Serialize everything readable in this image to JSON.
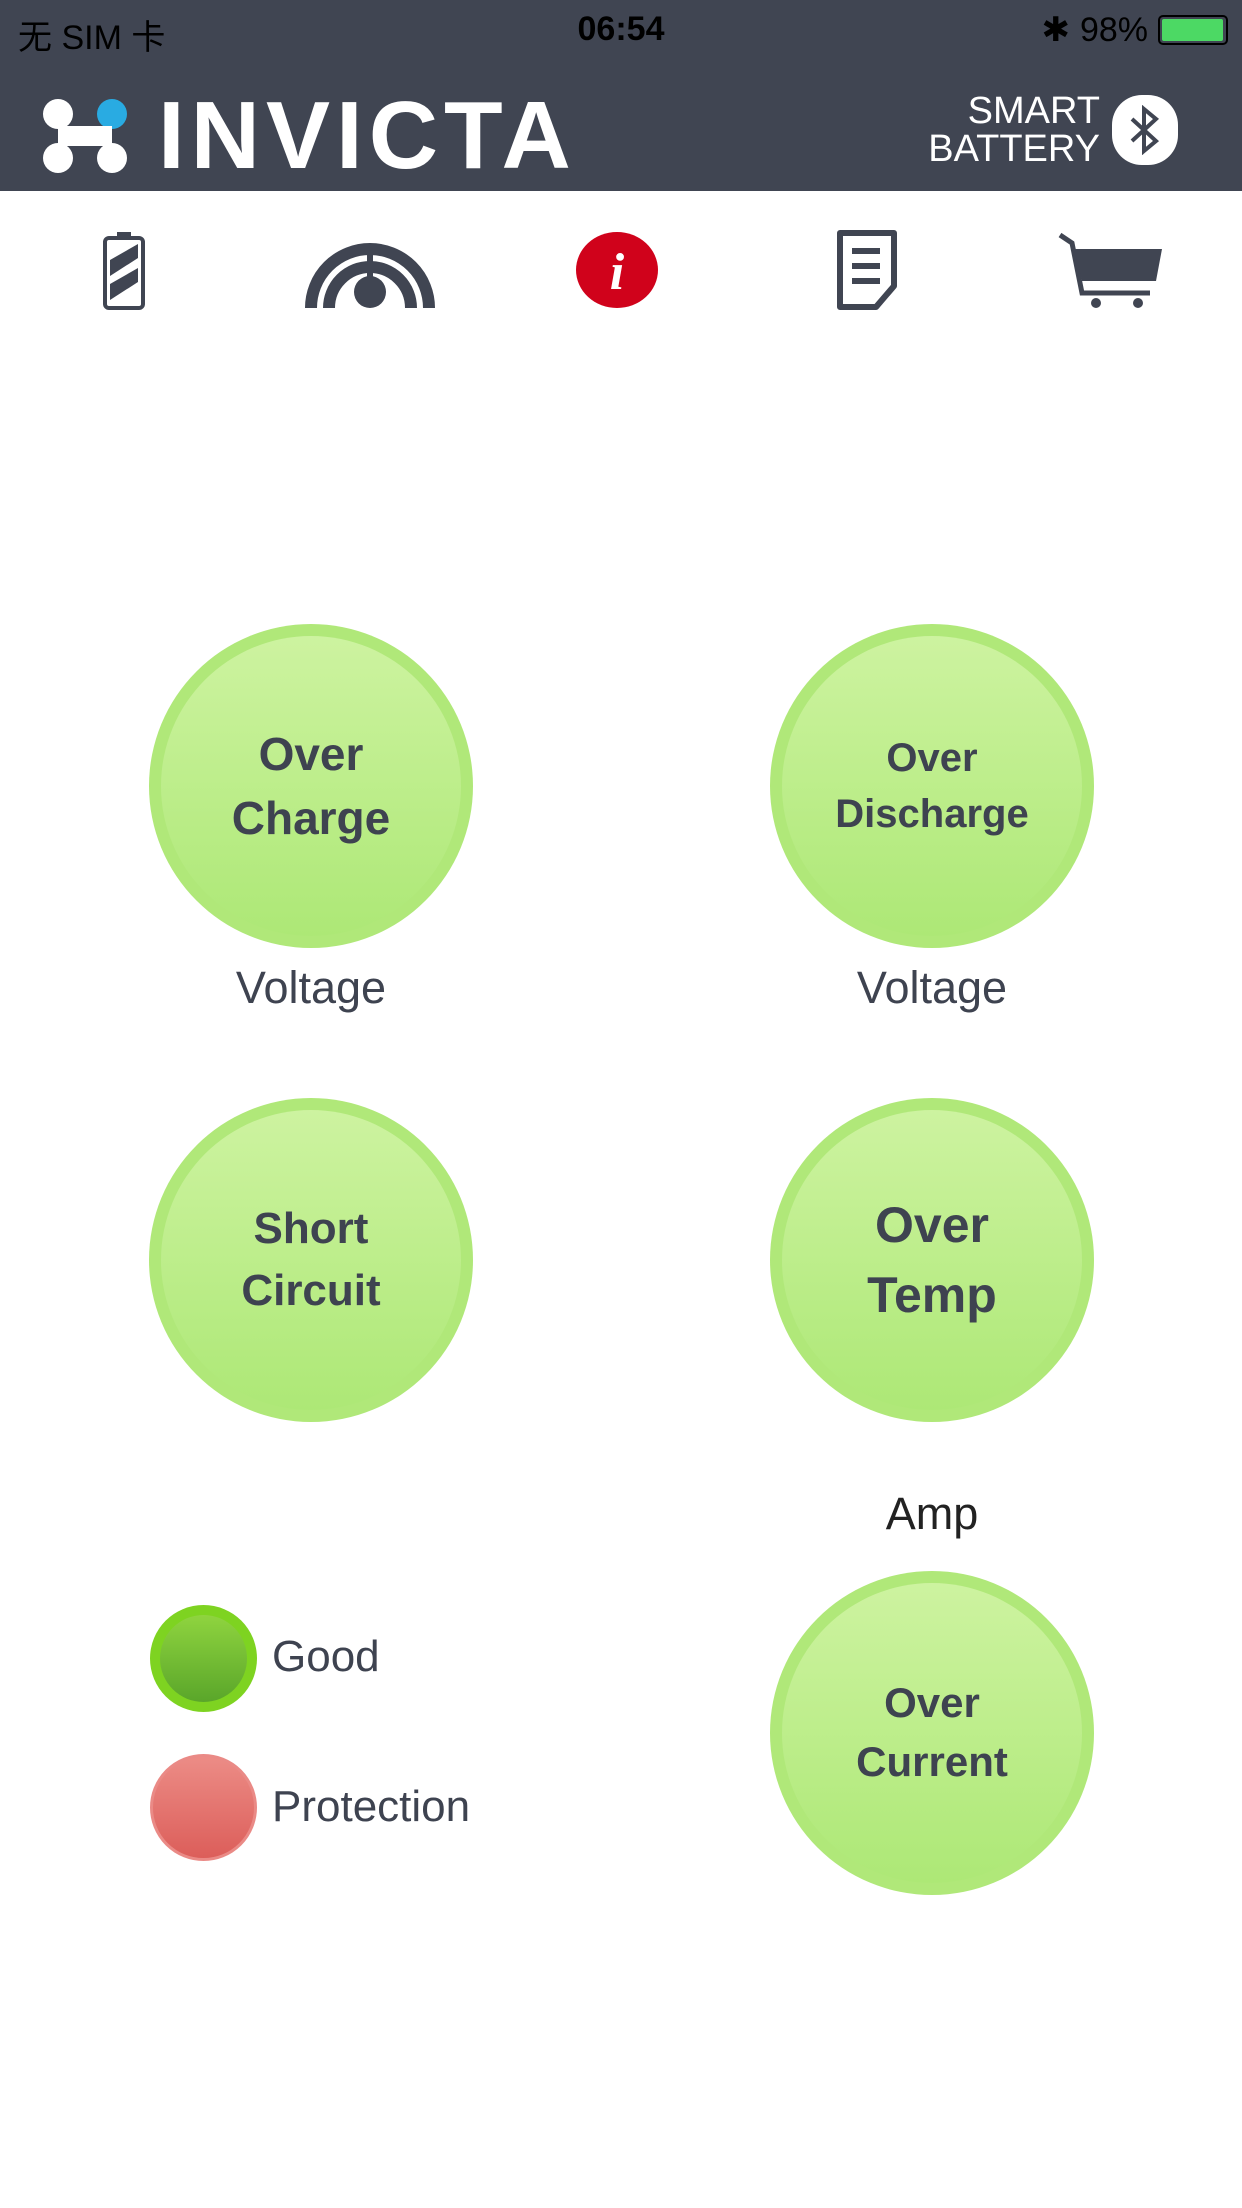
{
  "status_bar": {
    "carrier": "无 SIM 卡",
    "time": "06:54",
    "battery": "98%",
    "battery_level": 0.98
  },
  "header": {
    "brand": "INVICTA",
    "tagline_line1": "SMART",
    "tagline_line2": "BATTERY",
    "brand_color": "#29abe2"
  },
  "nav": [
    {
      "icon": "battery-icon",
      "active": false
    },
    {
      "icon": "speedometer-icon",
      "active": false
    },
    {
      "icon": "info-icon",
      "active": true,
      "color": "#d0021b"
    },
    {
      "icon": "document-icon",
      "active": false
    },
    {
      "icon": "cart-icon",
      "active": false
    }
  ],
  "indicators": [
    {
      "line1": "Over",
      "line2": "Charge",
      "caption": "Voltage",
      "state": "good"
    },
    {
      "line1": "Over",
      "line2": "Discharge",
      "caption": "Voltage",
      "state": "good"
    },
    {
      "line1": "Short",
      "line2": "Circuit",
      "caption": "",
      "state": "good"
    },
    {
      "line1": "Over",
      "line2": "Temp",
      "caption": "",
      "state": "good"
    },
    {
      "line1": "Over",
      "line2": "Current",
      "caption_above": "Amp",
      "state": "good"
    }
  ],
  "legend": [
    {
      "label": "Good",
      "color": "#7ed321"
    },
    {
      "label": "Protection",
      "color": "#e06a66"
    }
  ]
}
